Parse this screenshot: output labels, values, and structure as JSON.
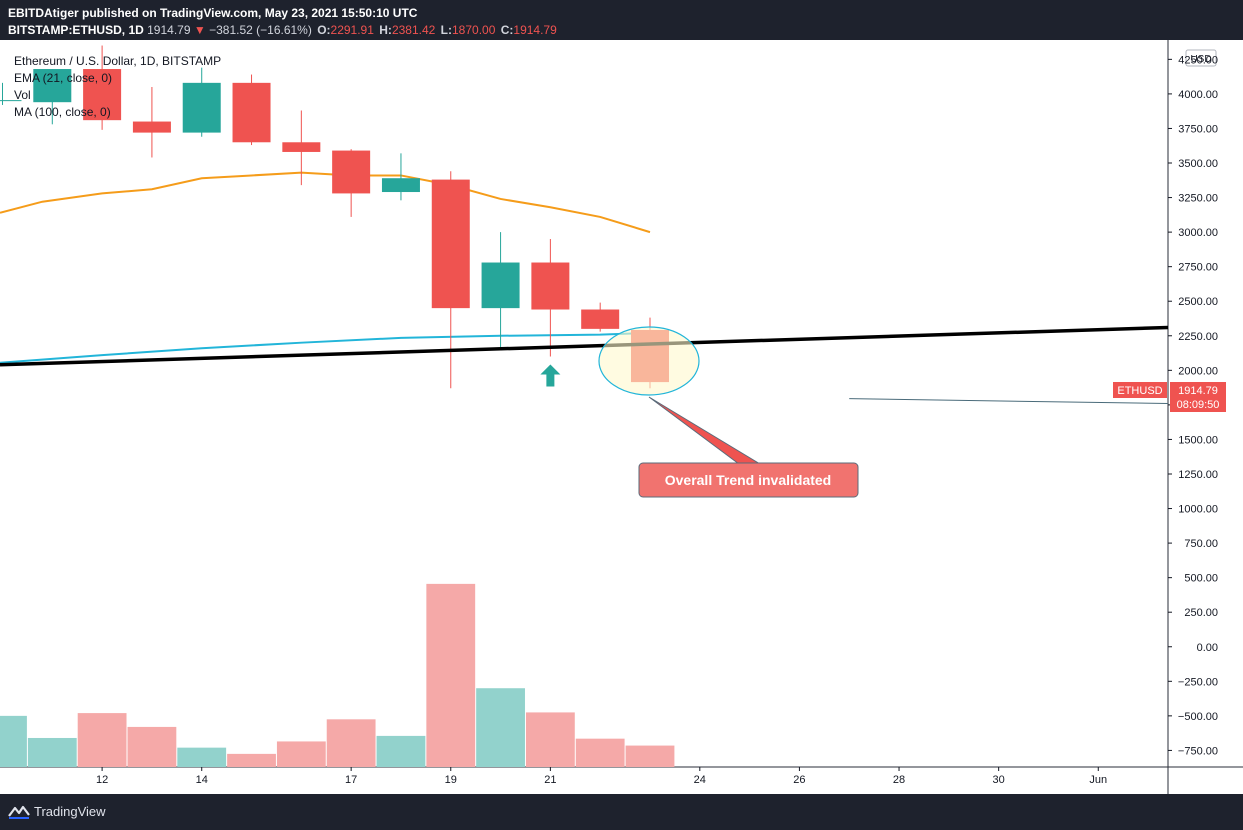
{
  "header": {
    "publisher_line": "EBITDAtiger published on TradingView.com, May 23, 2021 15:50:10 UTC",
    "symbol": "BITSTAMP:ETHUSD, 1D",
    "last": "1914.79",
    "change_arrow": "▼",
    "change": "−381.52 (−16.61%)",
    "o_label": "O:",
    "o_value": "2291.91",
    "h_label": "H:",
    "h_value": "2381.42",
    "l_label": "L:",
    "l_value": "1870.00",
    "c_label": "C:",
    "c_value": "1914.79"
  },
  "legend": {
    "title": "Ethereum / U.S. Dollar, 1D, BITSTAMP",
    "ema": "EMA (21, close, 0)",
    "vol": "Vol",
    "ma": "MA (100, close, 0)"
  },
  "price_axis": {
    "currency": "USD",
    "ticks": [
      "4250.00",
      "4000.00",
      "3750.00",
      "3500.00",
      "3250.00",
      "3000.00",
      "2750.00",
      "2500.00",
      "2250.00",
      "2000.00",
      "1750.00",
      "1500.00",
      "1250.00",
      "1000.00",
      "750.00",
      "500.00",
      "250.00",
      "0.00",
      "−250.00",
      "−500.00",
      "−750.00"
    ],
    "tick_values": [
      4250,
      4000,
      3750,
      3500,
      3250,
      3000,
      2750,
      2500,
      2250,
      2000,
      1750,
      1500,
      1250,
      1000,
      750,
      500,
      250,
      0,
      -250,
      -500,
      -750
    ]
  },
  "time_axis": {
    "labels": [
      "12",
      "14",
      "17",
      "19",
      "21",
      "24",
      "26",
      "28",
      "30",
      "Jun"
    ],
    "label_days": [
      12,
      14,
      17,
      19,
      21,
      24,
      26,
      28,
      30,
      32
    ]
  },
  "price_label": {
    "symbol": "ETHUSD",
    "price": "1914.79",
    "countdown": "08:09:50"
  },
  "annotation": {
    "text": "Overall Trend invalidated"
  },
  "footer": {
    "brand": "TradingView"
  },
  "colors": {
    "up": "#26a69a",
    "down": "#ef5350",
    "vol_up": "#92d2cc",
    "vol_down": "#f5a9a8",
    "ema": "#f59c1a",
    "ma": "#22b5d9",
    "trendline": "#000000",
    "annotation_bg": "#f1736f"
  },
  "chart_data": {
    "type": "candlestick",
    "symbol": "BITSTAMP:ETHUSD",
    "interval": "1D",
    "days": [
      10,
      11,
      12,
      13,
      14,
      15,
      16,
      17,
      18,
      19,
      20,
      21,
      22,
      23
    ],
    "candles": [
      {
        "day": 10,
        "o": 3950,
        "h": 4080,
        "l": 3920,
        "c": 3955
      },
      {
        "day": 11,
        "o": 3940,
        "h": 4180,
        "l": 3780,
        "c": 4180
      },
      {
        "day": 12,
        "o": 4180,
        "h": 4350,
        "l": 3740,
        "c": 3810
      },
      {
        "day": 13,
        "o": 3800,
        "h": 4050,
        "l": 3540,
        "c": 3720
      },
      {
        "day": 14,
        "o": 3720,
        "h": 4190,
        "l": 3690,
        "c": 4080
      },
      {
        "day": 15,
        "o": 4080,
        "h": 4140,
        "l": 3630,
        "c": 3650
      },
      {
        "day": 16,
        "o": 3650,
        "h": 3880,
        "l": 3340,
        "c": 3580
      },
      {
        "day": 17,
        "o": 3590,
        "h": 3600,
        "l": 3110,
        "c": 3280
      },
      {
        "day": 18,
        "o": 3290,
        "h": 3570,
        "l": 3230,
        "c": 3390
      },
      {
        "day": 19,
        "o": 3380,
        "h": 3440,
        "l": 1870,
        "c": 2450
      },
      {
        "day": 20,
        "o": 2450,
        "h": 3000,
        "l": 2160,
        "c": 2780
      },
      {
        "day": 21,
        "o": 2780,
        "h": 2950,
        "l": 2100,
        "c": 2440
      },
      {
        "day": 22,
        "o": 2440,
        "h": 2490,
        "l": 2280,
        "c": 2300
      },
      {
        "day": 23,
        "o": 2291.91,
        "h": 2381.42,
        "l": 1870.0,
        "c": 1914.79
      }
    ],
    "volume": [
      {
        "day": 10,
        "v": 370,
        "dir": "up"
      },
      {
        "day": 11,
        "v": 210,
        "dir": "up"
      },
      {
        "day": 12,
        "v": 390,
        "dir": "down"
      },
      {
        "day": 13,
        "v": 290,
        "dir": "down"
      },
      {
        "day": 14,
        "v": 140,
        "dir": "up"
      },
      {
        "day": 15,
        "v": 95,
        "dir": "down"
      },
      {
        "day": 16,
        "v": 185,
        "dir": "down"
      },
      {
        "day": 17,
        "v": 345,
        "dir": "down"
      },
      {
        "day": 18,
        "v": 225,
        "dir": "up"
      },
      {
        "day": 19,
        "v": 1325,
        "dir": "down"
      },
      {
        "day": 20,
        "v": 570,
        "dir": "up"
      },
      {
        "day": 21,
        "v": 395,
        "dir": "down"
      },
      {
        "day": 22,
        "v": 205,
        "dir": "down"
      },
      {
        "day": 23,
        "v": 155,
        "dir": "down"
      }
    ],
    "ema21": [
      {
        "day": 9.95,
        "v": 3140
      },
      {
        "day": 10.8,
        "v": 3220
      },
      {
        "day": 12,
        "v": 3280
      },
      {
        "day": 13,
        "v": 3310
      },
      {
        "day": 14,
        "v": 3390
      },
      {
        "day": 15,
        "v": 3410
      },
      {
        "day": 16,
        "v": 3430
      },
      {
        "day": 17,
        "v": 3410
      },
      {
        "day": 18,
        "v": 3410
      },
      {
        "day": 19,
        "v": 3340
      },
      {
        "day": 20,
        "v": 3240
      },
      {
        "day": 21,
        "v": 3180
      },
      {
        "day": 22,
        "v": 3110
      },
      {
        "day": 23,
        "v": 3000
      }
    ],
    "ma100": [
      {
        "day": 9.95,
        "v": 2055
      },
      {
        "day": 12,
        "v": 2110
      },
      {
        "day": 14,
        "v": 2160
      },
      {
        "day": 16,
        "v": 2200
      },
      {
        "day": 18,
        "v": 2235
      },
      {
        "day": 20,
        "v": 2250
      },
      {
        "day": 22,
        "v": 2258
      },
      {
        "day": 22.8,
        "v": 2268
      }
    ],
    "trendline": [
      {
        "day": 9.95,
        "v": 2040
      },
      {
        "day": 33.4,
        "v": 2310
      }
    ],
    "thin_line": [
      {
        "day": 27,
        "v": 1795
      },
      {
        "day": 33.4,
        "v": 1760
      }
    ],
    "signal_arrow": {
      "day": 21,
      "v": 1970,
      "direction": "up"
    },
    "xlim": [
      9.95,
      33.4
    ],
    "ylim": [
      -870,
      4390
    ]
  }
}
